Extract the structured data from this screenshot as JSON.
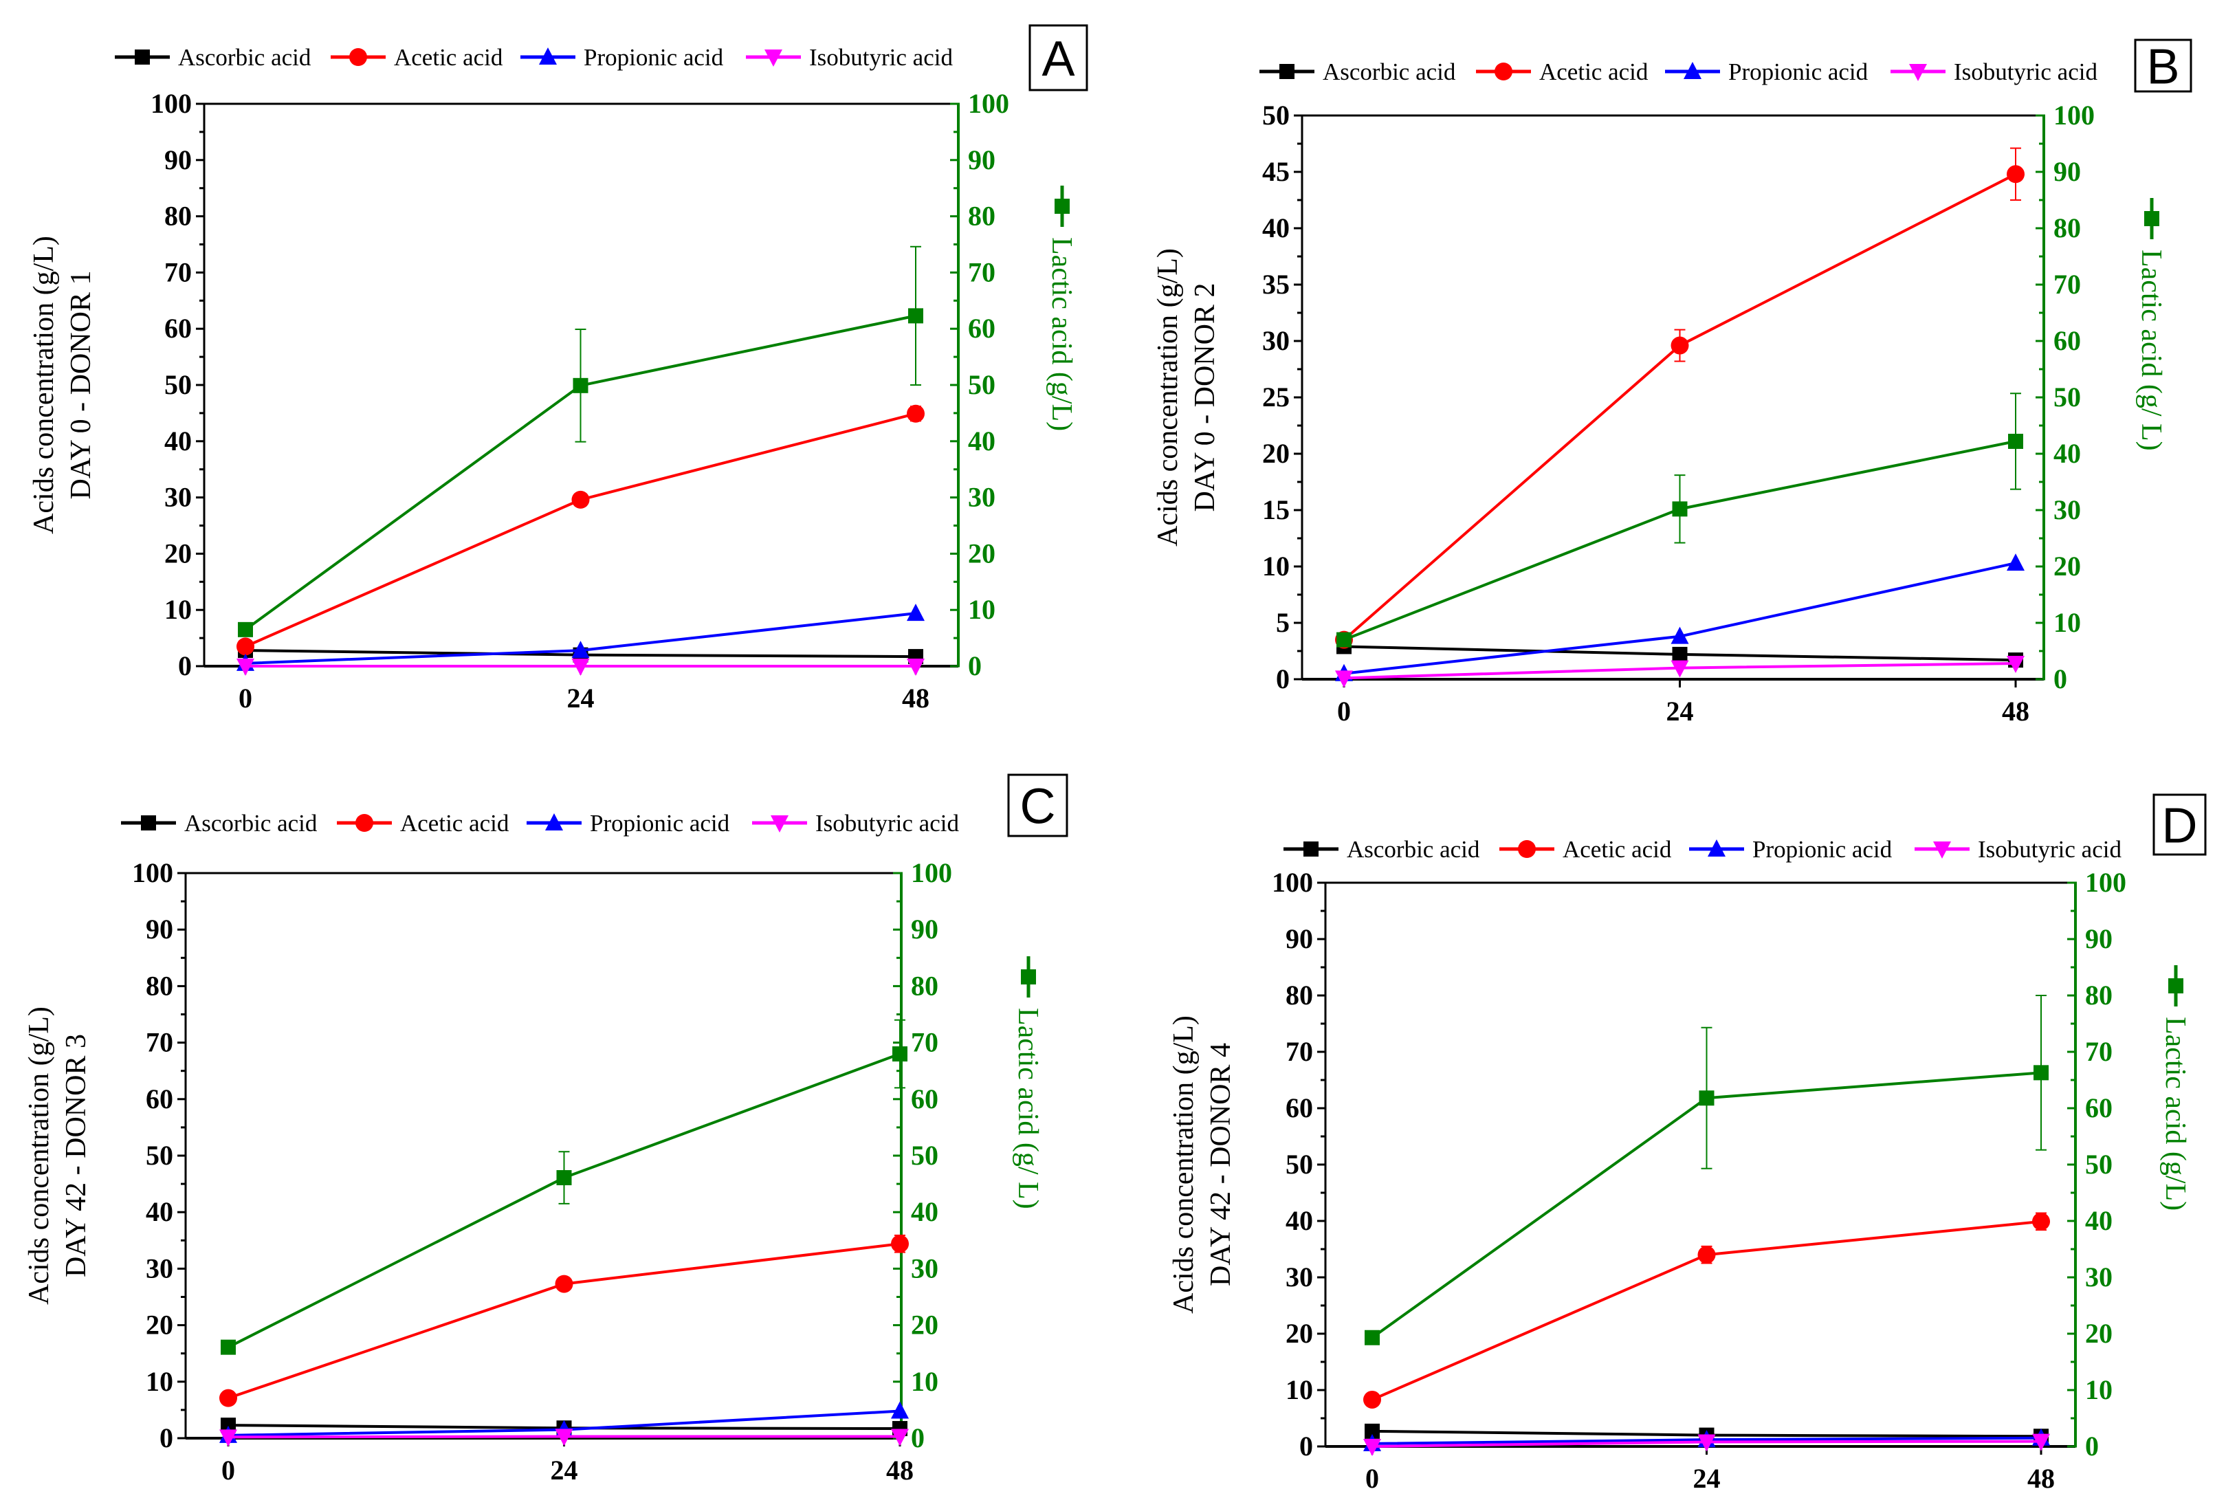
{
  "chart_data": [
    {
      "type": "line",
      "panel_label": "A",
      "x": [
        0,
        24,
        48
      ],
      "x_ticks": [
        "0",
        "24",
        "48"
      ],
      "ylabel_line1": "Acids concentration (g/L)",
      "ylabel_line2": "DAY 0 - DONOR 1",
      "ylim": [
        0,
        100
      ],
      "y_ticks": [
        "0",
        "10",
        "20",
        "30",
        "40",
        "50",
        "60",
        "70",
        "80",
        "90",
        "100"
      ],
      "y2label": "Lactic acid (g/L)",
      "y2lim": [
        0,
        100
      ],
      "y2_ticks": [
        "0",
        "10",
        "20",
        "30",
        "40",
        "50",
        "60",
        "70",
        "80",
        "90",
        "100"
      ],
      "legend_position": "top",
      "series": [
        {
          "name": "Ascorbic acid",
          "color": "#000000",
          "marker": "square",
          "axis": "left",
          "values": [
            2.8,
            2.0,
            1.7
          ],
          "errors": [
            0,
            0,
            0
          ]
        },
        {
          "name": "Acetic acid",
          "color": "#ff0000",
          "marker": "circle",
          "axis": "left",
          "values": [
            3.5,
            29.6,
            44.9
          ],
          "errors": [
            0.5,
            1.0,
            1.3
          ]
        },
        {
          "name": "Propionic acid",
          "color": "#0000ff",
          "marker": "triangle-up",
          "axis": "left",
          "values": [
            0.5,
            2.8,
            9.4
          ],
          "errors": [
            0,
            0,
            0
          ]
        },
        {
          "name": "Isobutyric acid",
          "color": "#ff00ff",
          "marker": "triangle-down",
          "axis": "left",
          "values": [
            0,
            0,
            0
          ],
          "errors": [
            0,
            0,
            0
          ]
        },
        {
          "name": "Lactic acid",
          "color": "#008000",
          "marker": "square",
          "axis": "right",
          "values": [
            6.5,
            49.9,
            62.3
          ],
          "errors": [
            1.0,
            10.0,
            12.3
          ]
        }
      ]
    },
    {
      "type": "line",
      "panel_label": "B",
      "x": [
        0,
        24,
        48
      ],
      "x_ticks": [
        "0",
        "24",
        "48"
      ],
      "ylabel_line1": "Acids concentration (g/L)",
      "ylabel_line2": "DAY 0 - DONOR 2",
      "ylim": [
        0,
        50
      ],
      "y_ticks": [
        "0",
        "5",
        "10",
        "15",
        "20",
        "25",
        "30",
        "35",
        "40",
        "45",
        "50"
      ],
      "y2label": "Lactic acid (g/ L)",
      "y2lim": [
        0,
        100
      ],
      "y2_ticks": [
        "0",
        "10",
        "20",
        "30",
        "40",
        "50",
        "60",
        "70",
        "80",
        "90",
        "100"
      ],
      "legend_position": "top",
      "series": [
        {
          "name": "Ascorbic acid",
          "color": "#000000",
          "marker": "square",
          "axis": "left",
          "values": [
            2.9,
            2.2,
            1.7
          ],
          "errors": [
            0,
            0,
            0
          ]
        },
        {
          "name": "Acetic acid",
          "color": "#ff0000",
          "marker": "circle",
          "axis": "left",
          "values": [
            3.5,
            29.6,
            44.8
          ],
          "errors": [
            0.3,
            1.4,
            2.3
          ]
        },
        {
          "name": "Propionic acid",
          "color": "#0000ff",
          "marker": "triangle-up",
          "axis": "left",
          "values": [
            0.5,
            3.8,
            10.3
          ],
          "errors": [
            0,
            0,
            0
          ]
        },
        {
          "name": "Isobutyric acid",
          "color": "#ff00ff",
          "marker": "triangle-down",
          "axis": "left",
          "values": [
            0.1,
            1.0,
            1.4
          ],
          "errors": [
            0,
            0,
            0
          ]
        },
        {
          "name": "Lactic acid",
          "color": "#008000",
          "marker": "square",
          "axis": "right",
          "values": [
            7.0,
            30.2,
            42.2
          ],
          "errors": [
            1.0,
            6.0,
            8.5
          ]
        }
      ]
    },
    {
      "type": "line",
      "panel_label": "C",
      "x": [
        0,
        24,
        48
      ],
      "x_ticks": [
        "0",
        "24",
        "48"
      ],
      "ylabel_line1": "Acids concentration (g/L)",
      "ylabel_line2": "DAY 42 - DONOR 3",
      "ylim": [
        0,
        100
      ],
      "y_ticks": [
        "0",
        "10",
        "20",
        "30",
        "40",
        "50",
        "60",
        "70",
        "80",
        "90",
        "100"
      ],
      "y2label": "Lactic acid (g/ L)",
      "y2lim": [
        0,
        100
      ],
      "y2_ticks": [
        "0",
        "10",
        "20",
        "30",
        "40",
        "50",
        "60",
        "70",
        "80",
        "90",
        "100"
      ],
      "legend_position": "top",
      "series": [
        {
          "name": "Ascorbic acid",
          "color": "#000000",
          "marker": "square",
          "axis": "left",
          "values": [
            2.3,
            1.8,
            1.7
          ],
          "errors": [
            0,
            0,
            0
          ]
        },
        {
          "name": "Acetic acid",
          "color": "#ff0000",
          "marker": "circle",
          "axis": "left",
          "values": [
            7.1,
            27.3,
            34.4
          ],
          "errors": [
            0.4,
            0.8,
            1.5
          ]
        },
        {
          "name": "Propionic acid",
          "color": "#0000ff",
          "marker": "triangle-up",
          "axis": "left",
          "values": [
            0.5,
            1.5,
            4.8
          ],
          "errors": [
            0,
            0,
            0
          ]
        },
        {
          "name": "Isobutyric acid",
          "color": "#ff00ff",
          "marker": "triangle-down",
          "axis": "left",
          "values": [
            0.2,
            0.3,
            0.3
          ],
          "errors": [
            0,
            0,
            0
          ]
        },
        {
          "name": "Lactic acid",
          "color": "#008000",
          "marker": "square",
          "axis": "right",
          "values": [
            16.1,
            46.1,
            68.0
          ],
          "errors": [
            0.5,
            4.6,
            6.0
          ]
        }
      ]
    },
    {
      "type": "line",
      "panel_label": "D",
      "x": [
        0,
        24,
        48
      ],
      "x_ticks": [
        "0",
        "24",
        "48"
      ],
      "ylabel_line1": "Acids concentration (g/L)",
      "ylabel_line2": "DAY 42 - DONOR 4",
      "ylim": [
        0,
        100
      ],
      "y_ticks": [
        "0",
        "10",
        "20",
        "30",
        "40",
        "50",
        "60",
        "70",
        "80",
        "90",
        "100"
      ],
      "y2label": "Lactic acid (g/L)",
      "y2lim": [
        0,
        100
      ],
      "y2_ticks": [
        "0",
        "10",
        "20",
        "30",
        "40",
        "50",
        "60",
        "70",
        "80",
        "90",
        "100"
      ],
      "legend_position": "top",
      "series": [
        {
          "name": "Ascorbic acid",
          "color": "#000000",
          "marker": "square",
          "axis": "left",
          "values": [
            2.7,
            2.0,
            1.8
          ],
          "errors": [
            0,
            0,
            0
          ]
        },
        {
          "name": "Acetic acid",
          "color": "#ff0000",
          "marker": "circle",
          "axis": "left",
          "values": [
            8.3,
            34.0,
            39.9
          ],
          "errors": [
            0.5,
            1.5,
            1.5
          ]
        },
        {
          "name": "Propionic acid",
          "color": "#0000ff",
          "marker": "triangle-up",
          "axis": "left",
          "values": [
            0.5,
            1.2,
            1.5
          ],
          "errors": [
            0,
            0,
            0
          ]
        },
        {
          "name": "Isobutyric acid",
          "color": "#ff00ff",
          "marker": "triangle-down",
          "axis": "left",
          "values": [
            0,
            0.8,
            0.9
          ],
          "errors": [
            0,
            0,
            0
          ]
        },
        {
          "name": "Lactic acid",
          "color": "#008000",
          "marker": "square",
          "axis": "right",
          "values": [
            19.3,
            61.8,
            66.3
          ],
          "errors": [
            0.8,
            12.5,
            13.7
          ]
        }
      ]
    }
  ]
}
